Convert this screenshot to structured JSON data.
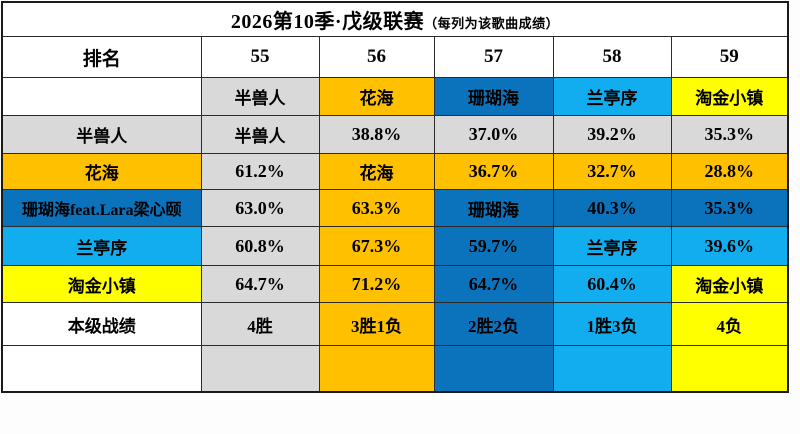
{
  "title": {
    "main": "2026第10季·戊级联赛",
    "sub": "（每列为该歌曲成绩）"
  },
  "colors": {
    "gray": "#D9D9D9",
    "orange": "#FFC000",
    "darkblue": "#0B72BC",
    "lightblue": "#12ADEE",
    "yellow": "#FFFF00",
    "white": "#FFFFFF"
  },
  "header": {
    "rank_label": "排名",
    "columns": [
      "55",
      "56",
      "57",
      "58",
      "59"
    ]
  },
  "table_rows": [
    {
      "name": "song-header-row",
      "label": {
        "text": "",
        "color": "white"
      },
      "cells": [
        {
          "text": "半兽人",
          "color": "gray",
          "kind": "song"
        },
        {
          "text": "花海",
          "color": "orange",
          "kind": "song"
        },
        {
          "text": "珊瑚海",
          "color": "darkblue",
          "kind": "song"
        },
        {
          "text": "兰亭序",
          "color": "lightblue",
          "kind": "song"
        },
        {
          "text": "淘金小镇",
          "color": "yellow",
          "kind": "song"
        }
      ]
    },
    {
      "name": "row-banshouren",
      "label": {
        "text": "半兽人",
        "color": "gray"
      },
      "cells": [
        {
          "text": "半兽人",
          "color": "gray",
          "kind": "song"
        },
        {
          "text": "38.8%",
          "color": "gray",
          "kind": "value"
        },
        {
          "text": "37.0%",
          "color": "gray",
          "kind": "value"
        },
        {
          "text": "39.2%",
          "color": "gray",
          "kind": "value"
        },
        {
          "text": "35.3%",
          "color": "gray",
          "kind": "value"
        }
      ]
    },
    {
      "name": "row-huahai",
      "label": {
        "text": "花海",
        "color": "orange"
      },
      "cells": [
        {
          "text": "61.2%",
          "color": "gray",
          "kind": "value"
        },
        {
          "text": "花海",
          "color": "orange",
          "kind": "song"
        },
        {
          "text": "36.7%",
          "color": "orange",
          "kind": "value"
        },
        {
          "text": "32.7%",
          "color": "orange",
          "kind": "value"
        },
        {
          "text": "28.8%",
          "color": "orange",
          "kind": "value"
        }
      ]
    },
    {
      "name": "row-shanhuhai",
      "label": {
        "text": "珊瑚海feat.Lara梁心颐",
        "color": "darkblue",
        "long": true
      },
      "cells": [
        {
          "text": "63.0%",
          "color": "gray",
          "kind": "value"
        },
        {
          "text": "63.3%",
          "color": "orange",
          "kind": "value"
        },
        {
          "text": "珊瑚海",
          "color": "darkblue",
          "kind": "song"
        },
        {
          "text": "40.3%",
          "color": "darkblue",
          "kind": "value"
        },
        {
          "text": "35.3%",
          "color": "darkblue",
          "kind": "value"
        }
      ]
    },
    {
      "name": "row-lantingxu",
      "label": {
        "text": "兰亭序",
        "color": "lightblue"
      },
      "cells": [
        {
          "text": "60.8%",
          "color": "gray",
          "kind": "value"
        },
        {
          "text": "67.3%",
          "color": "orange",
          "kind": "value"
        },
        {
          "text": "59.7%",
          "color": "darkblue",
          "kind": "value"
        },
        {
          "text": "兰亭序",
          "color": "lightblue",
          "kind": "song"
        },
        {
          "text": "39.6%",
          "color": "lightblue",
          "kind": "value"
        }
      ]
    },
    {
      "name": "row-taojinxiaozhen",
      "label": {
        "text": "淘金小镇",
        "color": "yellow"
      },
      "cells": [
        {
          "text": "64.7%",
          "color": "gray",
          "kind": "value"
        },
        {
          "text": "71.2%",
          "color": "orange",
          "kind": "value"
        },
        {
          "text": "64.7%",
          "color": "darkblue",
          "kind": "value"
        },
        {
          "text": "60.4%",
          "color": "lightblue",
          "kind": "value"
        },
        {
          "text": "淘金小镇",
          "color": "yellow",
          "kind": "song"
        }
      ]
    },
    {
      "name": "row-record",
      "label": {
        "text": "本级战绩",
        "color": "white"
      },
      "cells": [
        {
          "text": "4胜",
          "color": "gray",
          "kind": "song"
        },
        {
          "text": "3胜1负",
          "color": "orange",
          "kind": "song"
        },
        {
          "text": "2胜2负",
          "color": "darkblue",
          "kind": "song"
        },
        {
          "text": "1胜3负",
          "color": "lightblue",
          "kind": "song"
        },
        {
          "text": "4负",
          "color": "yellow",
          "kind": "song"
        }
      ]
    },
    {
      "name": "row-footer-colors",
      "label": {
        "text": "",
        "color": "white"
      },
      "cells": [
        {
          "text": "",
          "color": "gray",
          "kind": "song"
        },
        {
          "text": "",
          "color": "orange",
          "kind": "song"
        },
        {
          "text": "",
          "color": "darkblue",
          "kind": "song"
        },
        {
          "text": "",
          "color": "lightblue",
          "kind": "song"
        },
        {
          "text": "",
          "color": "yellow",
          "kind": "song"
        }
      ]
    }
  ],
  "chart_data": {
    "type": "table",
    "title": "2026第10季·戊级联赛（每列为该歌曲成绩）",
    "columns": [
      "排名",
      "55",
      "56",
      "57",
      "58",
      "59"
    ],
    "column_songs": [
      "",
      "半兽人",
      "花海",
      "珊瑚海",
      "兰亭序",
      "淘金小镇"
    ],
    "rows": [
      [
        "半兽人",
        "半兽人",
        "38.8%",
        "37.0%",
        "39.2%",
        "35.3%"
      ],
      [
        "花海",
        "61.2%",
        "花海",
        "36.7%",
        "32.7%",
        "28.8%"
      ],
      [
        "珊瑚海feat.Lara梁心颐",
        "63.0%",
        "63.3%",
        "珊瑚海",
        "40.3%",
        "35.3%"
      ],
      [
        "兰亭序",
        "60.8%",
        "67.3%",
        "59.7%",
        "兰亭序",
        "39.6%"
      ],
      [
        "淘金小镇",
        "64.7%",
        "71.2%",
        "64.7%",
        "60.4%",
        "淘金小镇"
      ],
      [
        "本级战绩",
        "4胜",
        "3胜1负",
        "2胜2负",
        "1胜3负",
        "4负"
      ]
    ],
    "notes": "cell background color = color of the losing song in each head-to-head matchup",
    "legend_colors": {
      "半兽人": "#D9D9D9",
      "花海": "#FFC000",
      "珊瑚海": "#0B72BC",
      "兰亭序": "#12ADEE",
      "淘金小镇": "#FFFF00"
    }
  }
}
